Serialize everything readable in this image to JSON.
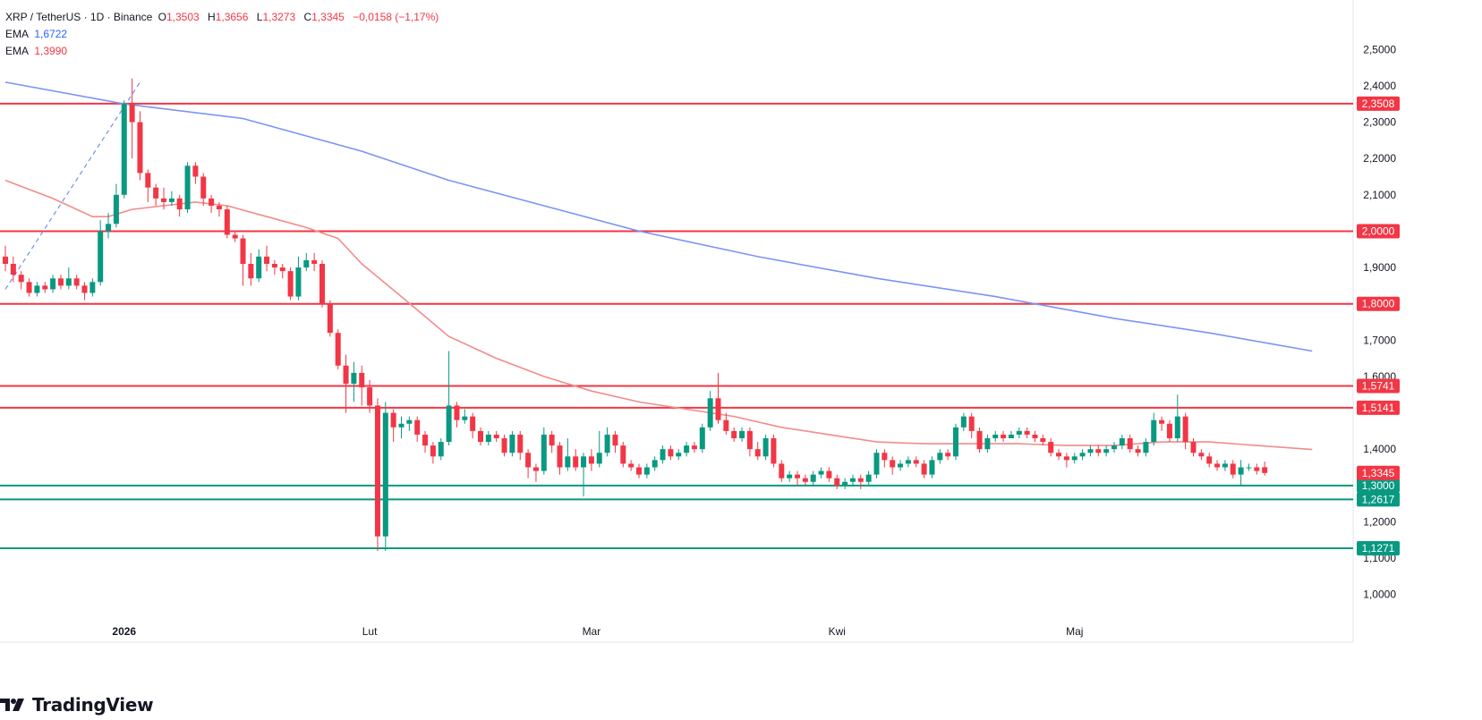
{
  "legend": {
    "symbol": "XRP / TetherUS · 1D · Binance",
    "o_label": "O",
    "o_val": "1,3503",
    "h_label": "H",
    "h_val": "1,3656",
    "l_label": "L",
    "l_val": "1,3273",
    "c_label": "C",
    "c_val": "1,3345",
    "change": "−0,0158 (−1,17%)",
    "ema1_label": "EMA",
    "ema1_val": "1,6722",
    "ema2_label": "EMA",
    "ema2_val": "1,3990"
  },
  "brand": "TradingView",
  "colors": {
    "up": "#089981",
    "down": "#f23645",
    "ema_long": "#7b93f5",
    "ema_short": "#f28b8b",
    "resistance": "#f23645",
    "support": "#089981"
  },
  "chart_data": {
    "type": "candlestick",
    "ylim": [
      0.95,
      2.55
    ],
    "y_ticks": [
      {
        "v": 2.5,
        "label": "2,5000"
      },
      {
        "v": 2.4,
        "label": "2,4000"
      },
      {
        "v": 2.3,
        "label": "2,3000"
      },
      {
        "v": 2.2,
        "label": "2,2000"
      },
      {
        "v": 2.1,
        "label": "2,1000"
      },
      {
        "v": 1.9,
        "label": "1,9000"
      },
      {
        "v": 1.7,
        "label": "1,7000"
      },
      {
        "v": 1.6,
        "label": "1,6000"
      },
      {
        "v": 1.4,
        "label": "1,4000"
      },
      {
        "v": 1.2,
        "label": "1,2000"
      },
      {
        "v": 1.1,
        "label": "1,1000"
      },
      {
        "v": 1.0,
        "label": "1,0000"
      }
    ],
    "x_labels": [
      {
        "i": 15,
        "label": "2026"
      },
      {
        "i": 46,
        "label": "Lut"
      },
      {
        "i": 74,
        "label": "Mar"
      },
      {
        "i": 105,
        "label": "Kwi"
      },
      {
        "i": 135,
        "label": "Maj"
      }
    ],
    "levels": [
      {
        "v": 2.3508,
        "label": "2,3508",
        "kind": "resistance"
      },
      {
        "v": 2.0,
        "label": "2,0000",
        "kind": "resistance"
      },
      {
        "v": 1.8,
        "label": "1,8000",
        "kind": "resistance"
      },
      {
        "v": 1.5741,
        "label": "1,5741",
        "kind": "resistance"
      },
      {
        "v": 1.5141,
        "label": "1,5141",
        "kind": "resistance"
      },
      {
        "v": 1.3,
        "label": "1,3000",
        "kind": "support"
      },
      {
        "v": 1.2617,
        "label": "1,2617",
        "kind": "support"
      },
      {
        "v": 1.1271,
        "label": "1,1271",
        "kind": "support"
      }
    ],
    "last_price": {
      "v": 1.3345,
      "label": "1,3345"
    },
    "candles": [
      [
        1.93,
        1.91,
        1.96,
        1.89
      ],
      [
        1.91,
        1.88,
        1.93,
        1.86
      ],
      [
        1.88,
        1.86,
        1.89,
        1.84
      ],
      [
        1.86,
        1.83,
        1.87,
        1.82
      ],
      [
        1.83,
        1.85,
        1.86,
        1.82
      ],
      [
        1.85,
        1.84,
        1.86,
        1.83
      ],
      [
        1.84,
        1.87,
        1.88,
        1.83
      ],
      [
        1.87,
        1.85,
        1.88,
        1.84
      ],
      [
        1.85,
        1.87,
        1.9,
        1.84
      ],
      [
        1.87,
        1.85,
        1.88,
        1.84
      ],
      [
        1.85,
        1.83,
        1.86,
        1.81
      ],
      [
        1.83,
        1.86,
        1.87,
        1.82
      ],
      [
        1.86,
        2.0,
        2.03,
        1.85
      ],
      [
        2.0,
        2.02,
        2.05,
        1.98
      ],
      [
        2.02,
        2.1,
        2.13,
        2.01
      ],
      [
        2.1,
        2.35,
        2.36,
        2.09
      ],
      [
        2.35,
        2.3,
        2.42,
        2.2
      ],
      [
        2.3,
        2.16,
        2.33,
        2.14
      ],
      [
        2.16,
        2.12,
        2.17,
        2.08
      ],
      [
        2.12,
        2.09,
        2.13,
        2.07
      ],
      [
        2.09,
        2.08,
        2.12,
        2.06
      ],
      [
        2.08,
        2.09,
        2.11,
        2.07
      ],
      [
        2.09,
        2.06,
        2.1,
        2.04
      ],
      [
        2.06,
        2.18,
        2.19,
        2.05
      ],
      [
        2.18,
        2.15,
        2.19,
        2.13
      ],
      [
        2.15,
        2.09,
        2.16,
        2.07
      ],
      [
        2.09,
        2.07,
        2.1,
        2.05
      ],
      [
        2.07,
        2.06,
        2.08,
        2.04
      ],
      [
        2.06,
        1.99,
        2.07,
        1.98
      ],
      [
        1.99,
        1.98,
        2.0,
        1.97
      ],
      [
        1.98,
        1.91,
        1.99,
        1.85
      ],
      [
        1.91,
        1.87,
        1.94,
        1.85
      ],
      [
        1.87,
        1.93,
        1.95,
        1.86
      ],
      [
        1.93,
        1.91,
        1.96,
        1.89
      ],
      [
        1.91,
        1.9,
        1.92,
        1.88
      ],
      [
        1.9,
        1.89,
        1.91,
        1.87
      ],
      [
        1.89,
        1.82,
        1.9,
        1.81
      ],
      [
        1.82,
        1.9,
        1.93,
        1.81
      ],
      [
        1.9,
        1.92,
        1.94,
        1.89
      ],
      [
        1.92,
        1.91,
        1.94,
        1.89
      ],
      [
        1.91,
        1.8,
        1.92,
        1.79
      ],
      [
        1.8,
        1.72,
        1.81,
        1.71
      ],
      [
        1.72,
        1.63,
        1.73,
        1.62
      ],
      [
        1.63,
        1.58,
        1.66,
        1.5
      ],
      [
        1.58,
        1.61,
        1.64,
        1.53
      ],
      [
        1.61,
        1.57,
        1.63,
        1.52
      ],
      [
        1.57,
        1.52,
        1.59,
        1.5
      ],
      [
        1.52,
        1.16,
        1.54,
        1.12
      ],
      [
        1.16,
        1.5,
        1.53,
        1.12
      ],
      [
        1.5,
        1.46,
        1.51,
        1.42
      ],
      [
        1.46,
        1.47,
        1.49,
        1.43
      ],
      [
        1.47,
        1.48,
        1.49,
        1.45
      ],
      [
        1.48,
        1.44,
        1.49,
        1.42
      ],
      [
        1.44,
        1.41,
        1.45,
        1.39
      ],
      [
        1.41,
        1.38,
        1.42,
        1.36
      ],
      [
        1.38,
        1.42,
        1.43,
        1.37
      ],
      [
        1.42,
        1.52,
        1.67,
        1.41
      ],
      [
        1.52,
        1.48,
        1.53,
        1.46
      ],
      [
        1.48,
        1.49,
        1.51,
        1.47
      ],
      [
        1.49,
        1.45,
        1.5,
        1.43
      ],
      [
        1.45,
        1.42,
        1.46,
        1.41
      ],
      [
        1.42,
        1.44,
        1.45,
        1.41
      ],
      [
        1.44,
        1.43,
        1.45,
        1.42
      ],
      [
        1.43,
        1.39,
        1.44,
        1.38
      ],
      [
        1.39,
        1.44,
        1.45,
        1.38
      ],
      [
        1.44,
        1.39,
        1.45,
        1.37
      ],
      [
        1.39,
        1.35,
        1.4,
        1.32
      ],
      [
        1.35,
        1.34,
        1.36,
        1.31
      ],
      [
        1.34,
        1.44,
        1.46,
        1.33
      ],
      [
        1.44,
        1.41,
        1.45,
        1.39
      ],
      [
        1.41,
        1.35,
        1.42,
        1.33
      ],
      [
        1.35,
        1.38,
        1.43,
        1.34
      ],
      [
        1.38,
        1.35,
        1.4,
        1.34
      ],
      [
        1.35,
        1.38,
        1.39,
        1.27
      ],
      [
        1.38,
        1.36,
        1.4,
        1.34
      ],
      [
        1.36,
        1.39,
        1.45,
        1.35
      ],
      [
        1.39,
        1.44,
        1.46,
        1.38
      ],
      [
        1.44,
        1.41,
        1.45,
        1.39
      ],
      [
        1.41,
        1.36,
        1.42,
        1.35
      ],
      [
        1.36,
        1.35,
        1.37,
        1.34
      ],
      [
        1.35,
        1.33,
        1.36,
        1.32
      ],
      [
        1.33,
        1.35,
        1.36,
        1.32
      ],
      [
        1.35,
        1.37,
        1.38,
        1.34
      ],
      [
        1.37,
        1.4,
        1.41,
        1.36
      ],
      [
        1.4,
        1.38,
        1.41,
        1.37
      ],
      [
        1.38,
        1.39,
        1.4,
        1.37
      ],
      [
        1.39,
        1.41,
        1.42,
        1.38
      ],
      [
        1.41,
        1.4,
        1.42,
        1.39
      ],
      [
        1.4,
        1.46,
        1.47,
        1.39
      ],
      [
        1.46,
        1.54,
        1.56,
        1.45
      ],
      [
        1.54,
        1.48,
        1.61,
        1.47
      ],
      [
        1.48,
        1.45,
        1.5,
        1.44
      ],
      [
        1.45,
        1.43,
        1.46,
        1.42
      ],
      [
        1.43,
        1.45,
        1.46,
        1.42
      ],
      [
        1.45,
        1.4,
        1.46,
        1.38
      ],
      [
        1.4,
        1.38,
        1.42,
        1.37
      ],
      [
        1.38,
        1.43,
        1.44,
        1.37
      ],
      [
        1.43,
        1.36,
        1.44,
        1.35
      ],
      [
        1.36,
        1.32,
        1.37,
        1.31
      ],
      [
        1.32,
        1.33,
        1.34,
        1.31
      ],
      [
        1.33,
        1.32,
        1.34,
        1.3
      ],
      [
        1.32,
        1.31,
        1.33,
        1.3
      ],
      [
        1.31,
        1.33,
        1.34,
        1.3
      ],
      [
        1.33,
        1.34,
        1.35,
        1.32
      ],
      [
        1.34,
        1.32,
        1.35,
        1.31
      ],
      [
        1.32,
        1.3,
        1.33,
        1.29
      ],
      [
        1.3,
        1.31,
        1.32,
        1.29
      ],
      [
        1.31,
        1.32,
        1.33,
        1.3
      ],
      [
        1.32,
        1.31,
        1.33,
        1.29
      ],
      [
        1.31,
        1.33,
        1.34,
        1.3
      ],
      [
        1.33,
        1.39,
        1.4,
        1.32
      ],
      [
        1.39,
        1.37,
        1.4,
        1.35
      ],
      [
        1.37,
        1.35,
        1.38,
        1.33
      ],
      [
        1.35,
        1.36,
        1.37,
        1.34
      ],
      [
        1.36,
        1.37,
        1.38,
        1.35
      ],
      [
        1.37,
        1.36,
        1.38,
        1.35
      ],
      [
        1.36,
        1.33,
        1.37,
        1.32
      ],
      [
        1.33,
        1.37,
        1.38,
        1.32
      ],
      [
        1.37,
        1.39,
        1.4,
        1.36
      ],
      [
        1.39,
        1.38,
        1.4,
        1.37
      ],
      [
        1.38,
        1.46,
        1.47,
        1.37
      ],
      [
        1.46,
        1.49,
        1.5,
        1.45
      ],
      [
        1.49,
        1.45,
        1.5,
        1.43
      ],
      [
        1.45,
        1.4,
        1.46,
        1.39
      ],
      [
        1.4,
        1.43,
        1.44,
        1.39
      ],
      [
        1.43,
        1.44,
        1.45,
        1.42
      ],
      [
        1.44,
        1.43,
        1.45,
        1.42
      ],
      [
        1.43,
        1.44,
        1.45,
        1.43
      ],
      [
        1.44,
        1.45,
        1.46,
        1.43
      ],
      [
        1.45,
        1.44,
        1.46,
        1.43
      ],
      [
        1.44,
        1.43,
        1.45,
        1.42
      ],
      [
        1.43,
        1.42,
        1.44,
        1.41
      ],
      [
        1.42,
        1.39,
        1.43,
        1.38
      ],
      [
        1.39,
        1.38,
        1.4,
        1.37
      ],
      [
        1.38,
        1.37,
        1.39,
        1.35
      ],
      [
        1.37,
        1.38,
        1.39,
        1.36
      ],
      [
        1.38,
        1.39,
        1.4,
        1.37
      ],
      [
        1.39,
        1.4,
        1.41,
        1.38
      ],
      [
        1.4,
        1.39,
        1.41,
        1.38
      ],
      [
        1.39,
        1.4,
        1.41,
        1.38
      ],
      [
        1.4,
        1.41,
        1.42,
        1.39
      ],
      [
        1.41,
        1.43,
        1.44,
        1.4
      ],
      [
        1.43,
        1.4,
        1.44,
        1.39
      ],
      [
        1.4,
        1.39,
        1.41,
        1.38
      ],
      [
        1.39,
        1.42,
        1.43,
        1.38
      ],
      [
        1.42,
        1.48,
        1.5,
        1.41
      ],
      [
        1.48,
        1.47,
        1.49,
        1.45
      ],
      [
        1.47,
        1.43,
        1.48,
        1.42
      ],
      [
        1.43,
        1.49,
        1.55,
        1.42
      ],
      [
        1.49,
        1.42,
        1.5,
        1.4
      ],
      [
        1.42,
        1.39,
        1.43,
        1.38
      ],
      [
        1.39,
        1.38,
        1.4,
        1.37
      ],
      [
        1.38,
        1.36,
        1.39,
        1.35
      ],
      [
        1.36,
        1.35,
        1.37,
        1.34
      ],
      [
        1.35,
        1.36,
        1.37,
        1.34
      ],
      [
        1.36,
        1.33,
        1.37,
        1.32
      ],
      [
        1.33,
        1.35,
        1.37,
        1.3
      ],
      [
        1.35,
        1.35,
        1.36,
        1.34
      ],
      [
        1.35,
        1.34,
        1.36,
        1.33
      ],
      [
        1.3503,
        1.3345,
        1.3656,
        1.3273
      ]
    ],
    "ema_long": [
      [
        0,
        2.41
      ],
      [
        15,
        2.35
      ],
      [
        30,
        2.31
      ],
      [
        45,
        2.22
      ],
      [
        56,
        2.14
      ],
      [
        68,
        2.07
      ],
      [
        80,
        2.0
      ],
      [
        95,
        1.93
      ],
      [
        110,
        1.87
      ],
      [
        125,
        1.82
      ],
      [
        140,
        1.76
      ],
      [
        152,
        1.72
      ],
      [
        165,
        1.67
      ]
    ],
    "ema_short": [
      [
        0,
        2.14
      ],
      [
        6,
        2.09
      ],
      [
        11,
        2.04
      ],
      [
        13,
        2.04
      ],
      [
        16,
        2.06
      ],
      [
        20,
        2.07
      ],
      [
        24,
        2.08
      ],
      [
        28,
        2.07
      ],
      [
        33,
        2.04
      ],
      [
        38,
        2.01
      ],
      [
        42,
        1.98
      ],
      [
        45,
        1.91
      ],
      [
        50,
        1.82
      ],
      [
        56,
        1.71
      ],
      [
        62,
        1.65
      ],
      [
        68,
        1.6
      ],
      [
        74,
        1.56
      ],
      [
        80,
        1.53
      ],
      [
        86,
        1.51
      ],
      [
        92,
        1.49
      ],
      [
        98,
        1.46
      ],
      [
        104,
        1.44
      ],
      [
        110,
        1.42
      ],
      [
        116,
        1.415
      ],
      [
        122,
        1.415
      ],
      [
        128,
        1.415
      ],
      [
        134,
        1.41
      ],
      [
        140,
        1.41
      ],
      [
        146,
        1.42
      ],
      [
        152,
        1.42
      ],
      [
        158,
        1.41
      ],
      [
        165,
        1.399
      ]
    ],
    "trend_line": [
      [
        0,
        1.84
      ],
      [
        17,
        2.41
      ]
    ]
  }
}
